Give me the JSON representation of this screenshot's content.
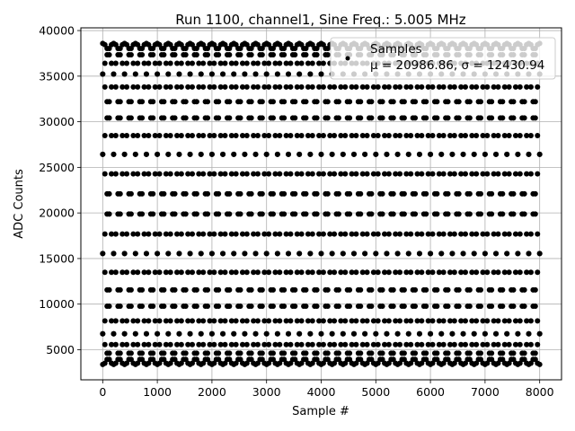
{
  "chart_data": {
    "type": "scatter",
    "title": "Run 1100, channel1, Sine Freq.: 5.005 MHz",
    "xlabel": "Sample #",
    "ylabel": "ADC Counts",
    "xlim": [
      -400,
      8400
    ],
    "ylim": [
      1700,
      40300
    ],
    "xticks": [
      0,
      1000,
      2000,
      3000,
      4000,
      5000,
      6000,
      7000,
      8000
    ],
    "yticks": [
      5000,
      10000,
      15000,
      20000,
      25000,
      30000,
      35000,
      40000
    ],
    "grid": true,
    "legend": {
      "placement": "top-right",
      "title_line": "Samples",
      "stats_line": "μ = 20986.86, σ = 12430.94"
    },
    "series": [
      {
        "name": "Samples",
        "color": "#000000",
        "mean": 20986.86,
        "amplitude": 17600,
        "envelope_period_samples": 2000,
        "phase_offsets_deg": [
          0,
          36,
          72,
          108,
          144,
          180,
          216,
          252,
          288,
          324
        ],
        "x_range": [
          0,
          8000
        ]
      }
    ]
  }
}
